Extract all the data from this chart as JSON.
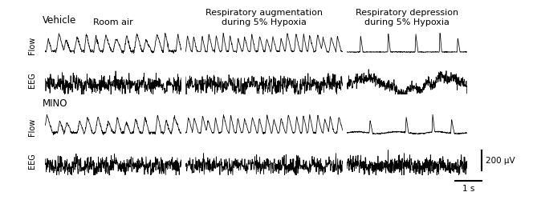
{
  "bg_color": "#ffffff",
  "text_color": "#000000",
  "col_labels": [
    "Room air",
    "Respiratory augmentation\nduring 5% Hypoxia",
    "Respiratory depression\nduring 5% Hypoxia"
  ],
  "scale_bar_label_uv": "200 μV",
  "scale_bar_label_s": "1 s",
  "fig_width": 6.64,
  "fig_height": 2.75,
  "dpi": 100
}
